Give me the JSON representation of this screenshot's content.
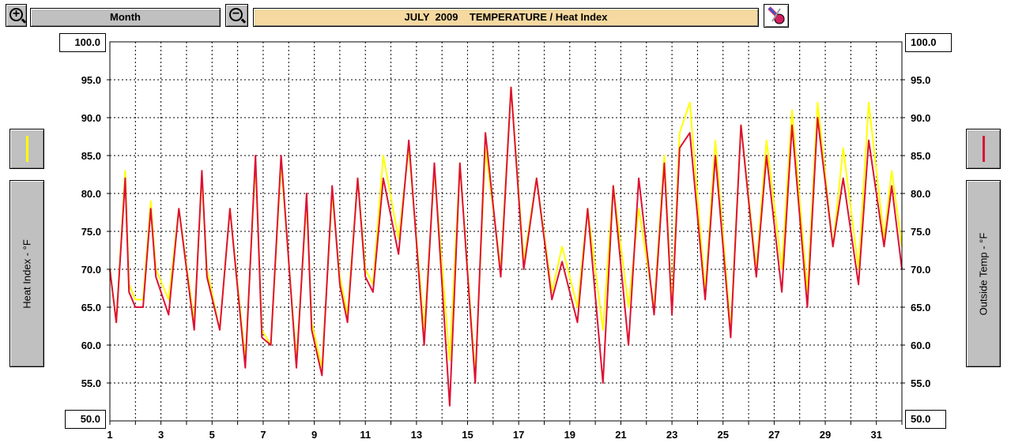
{
  "toolbar": {
    "zoom_in_icon": "zoom-in-magnifier-icon",
    "zoom_out_icon": "zoom-out-magnifier-icon",
    "period_label": "Month",
    "title": "JULY  2009    TEMPERATURE / Heat Index",
    "tool_icon": "paint-tool-icon",
    "title_bg_color": "#f5d9a0"
  },
  "left_panel": {
    "legend_color": "#ffff00",
    "axis_label": "Heat Index - °F",
    "top_value": "100.0",
    "bottom_value": "50.0"
  },
  "right_panel": {
    "legend_color": "#dd1133",
    "axis_label": "Outside Temp - °F",
    "top_value": "100.0",
    "bottom_value": "50.0"
  },
  "chart_data": {
    "type": "line",
    "title": "JULY  2009    TEMPERATURE / Heat Index",
    "xlabel": "",
    "ylabel_left": "Heat Index - °F",
    "ylabel_right": "Outside Temp - °F",
    "xlim": [
      1,
      32
    ],
    "ylim": [
      50,
      100
    ],
    "grid": true,
    "x_tick_labels": [
      "1",
      "3",
      "5",
      "7",
      "9",
      "11",
      "13",
      "15",
      "17",
      "19",
      "21",
      "23",
      "25",
      "27",
      "29",
      "31"
    ],
    "y_tick_labels": [
      "95.0",
      "90.0",
      "85.0",
      "80.0",
      "75.0",
      "70.0",
      "65.0",
      "60.0",
      "55.0"
    ],
    "series": [
      {
        "name": "Heat Index - °F",
        "color": "#ffff00",
        "x": [
          1.0,
          1.25,
          1.6,
          1.75,
          2.0,
          2.3,
          2.6,
          2.8,
          3.3,
          3.7,
          4.3,
          4.6,
          4.8,
          5.3,
          5.7,
          6.3,
          6.7,
          6.95,
          7.3,
          7.7,
          8.3,
          8.7,
          8.9,
          9.3,
          9.7,
          10.0,
          10.3,
          10.7,
          11.0,
          11.3,
          11.7,
          12.3,
          12.7,
          13.3,
          13.7,
          14.3,
          14.7,
          15.3,
          15.7,
          16.3,
          16.7,
          17.2,
          17.7,
          18.3,
          18.7,
          19.3,
          19.7,
          20.3,
          20.7,
          21.3,
          21.7,
          22.3,
          22.7,
          23.0,
          23.3,
          23.7,
          24.3,
          24.7,
          25.3,
          25.7,
          26.3,
          26.7,
          27.3,
          27.7,
          28.3,
          28.7,
          29.3,
          29.7,
          30.3,
          30.7,
          31.3,
          31.6,
          32.0
        ],
        "y": [
          70,
          63,
          83,
          68,
          66,
          66,
          79,
          70,
          66,
          78,
          63,
          82,
          70,
          62,
          78,
          58,
          84,
          62,
          60,
          84,
          58,
          79,
          63,
          57,
          80,
          69,
          64,
          82,
          70,
          68,
          85,
          74,
          86,
          62,
          83,
          58,
          84,
          56,
          86,
          70,
          94,
          71,
          82,
          67,
          73,
          65,
          78,
          62,
          81,
          65,
          78,
          65,
          85,
          65,
          88,
          92,
          67,
          87,
          62,
          89,
          70,
          87,
          70,
          91,
          67,
          92,
          73,
          86,
          70,
          92,
          74,
          83,
          73
        ]
      },
      {
        "name": "Outside Temp - °F",
        "color": "#dd1133",
        "x": [
          1.0,
          1.25,
          1.6,
          1.75,
          2.0,
          2.3,
          2.6,
          2.8,
          3.3,
          3.7,
          4.3,
          4.6,
          4.8,
          5.3,
          5.7,
          6.3,
          6.7,
          6.95,
          7.3,
          7.7,
          8.3,
          8.7,
          8.9,
          9.3,
          9.7,
          10.0,
          10.3,
          10.7,
          11.0,
          11.3,
          11.7,
          12.3,
          12.7,
          13.3,
          13.7,
          14.3,
          14.7,
          15.3,
          15.7,
          16.3,
          16.7,
          17.2,
          17.7,
          18.3,
          18.7,
          19.3,
          19.7,
          20.3,
          20.7,
          21.3,
          21.7,
          22.3,
          22.7,
          23.0,
          23.3,
          23.7,
          24.3,
          24.7,
          25.3,
          25.7,
          26.3,
          26.7,
          27.3,
          27.7,
          28.3,
          28.7,
          29.3,
          29.7,
          30.3,
          30.7,
          31.3,
          31.6,
          32.0
        ],
        "y": [
          70,
          63,
          82,
          67,
          65,
          65,
          78,
          69,
          64,
          78,
          62,
          83,
          69,
          62,
          78,
          57,
          85,
          61,
          60,
          85,
          57,
          80,
          62,
          56,
          81,
          68,
          63,
          82,
          69,
          67,
          82,
          72,
          87,
          60,
          84,
          52,
          84,
          55,
          88,
          69,
          94,
          70,
          82,
          66,
          71,
          63,
          78,
          55,
          81,
          60,
          82,
          64,
          84,
          64,
          86,
          88,
          66,
          85,
          61,
          89,
          69,
          85,
          67,
          89,
          65,
          90,
          73,
          82,
          68,
          87,
          73,
          81,
          70
        ]
      }
    ]
  }
}
